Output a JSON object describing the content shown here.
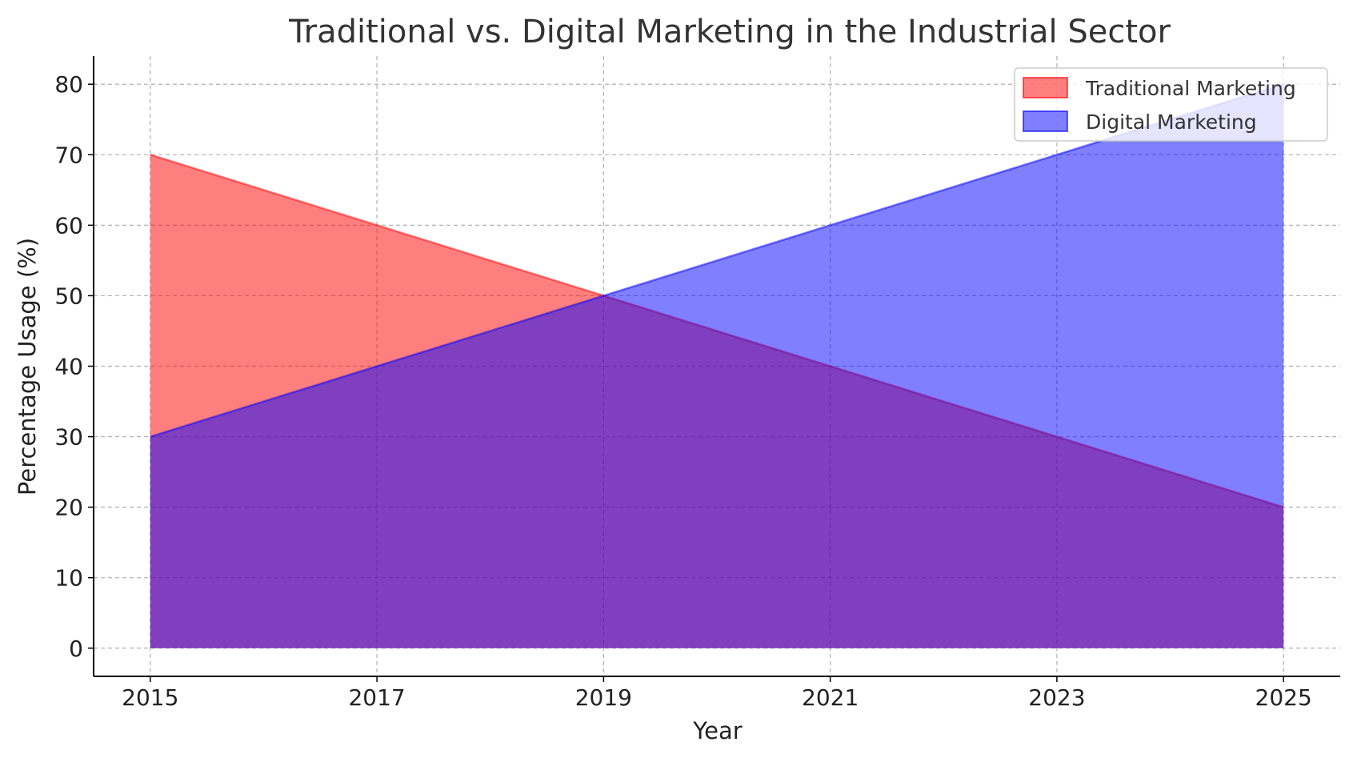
{
  "chart_data": {
    "type": "area",
    "title": "Traditional vs. Digital Marketing in the Industrial Sector",
    "xlabel": "Year",
    "ylabel": "Percentage Usage (%)",
    "x": [
      2015,
      2017,
      2019,
      2021,
      2023,
      2025
    ],
    "xticks": [
      "2015",
      "2017",
      "2019",
      "2021",
      "2023",
      "2025"
    ],
    "yticks": [
      "0",
      "10",
      "20",
      "30",
      "40",
      "50",
      "60",
      "70",
      "80"
    ],
    "xlim": [
      2014.5,
      2025.5
    ],
    "ylim": [
      -4,
      84
    ],
    "grid": true,
    "legend_position": "upper-right",
    "series": [
      {
        "name": "Traditional Marketing",
        "values": [
          70,
          60,
          50,
          40,
          30,
          20
        ],
        "color": "#ff0000",
        "opacity": 0.5
      },
      {
        "name": "Digital Marketing",
        "values": [
          30,
          40,
          50,
          60,
          70,
          80
        ],
        "color": "#0000ff",
        "opacity": 0.5
      }
    ]
  }
}
